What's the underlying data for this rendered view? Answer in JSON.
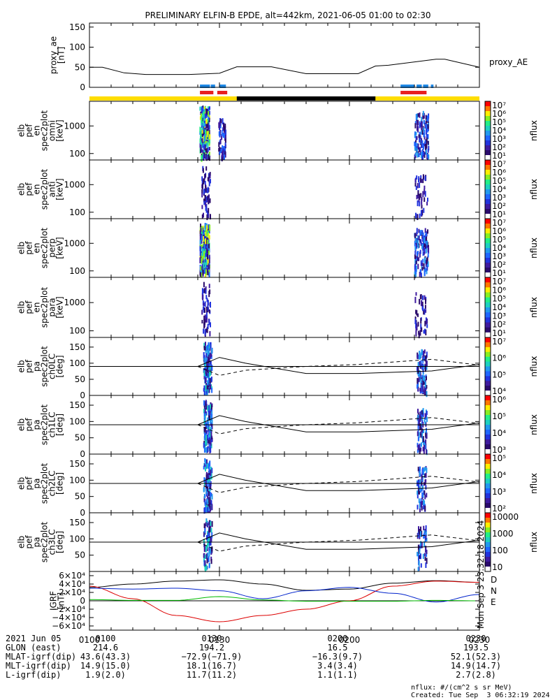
{
  "title": "PRELIMINARY ELFIN-B EPDE, alt=442km, 2021-06-05 01:00 to 02:30",
  "time_ticks": [
    "0100",
    "0130",
    "0200",
    "0230"
  ],
  "panels": {
    "proxy_ae": {
      "ylabel": [
        "proxy_ae",
        "[nT]"
      ],
      "yticks": [
        "150",
        "100",
        "50",
        "0"
      ],
      "label": "proxy_AE"
    },
    "spec_omni": {
      "ylabel": [
        "elb",
        "pef",
        "en",
        "spec2plot",
        "omni",
        "[keV]"
      ],
      "yticks": [
        "1000",
        "100"
      ]
    },
    "spec_anti": {
      "ylabel": [
        "elb",
        "pef",
        "en",
        "spec2plot",
        "anti",
        "[keV]"
      ],
      "yticks": [
        "1000",
        "100"
      ]
    },
    "spec_perp": {
      "ylabel": [
        "elb",
        "pef",
        "en",
        "spec2plot",
        "perp",
        "[keV]"
      ],
      "yticks": [
        "1000",
        "100"
      ]
    },
    "spec_para": {
      "ylabel": [
        "elb",
        "pef",
        "en",
        "spec2plot",
        "para",
        "[keV]"
      ],
      "yticks": [
        "1000",
        "100"
      ]
    },
    "pa_ch0": {
      "ylabel": [
        "elb",
        "pef",
        "pa",
        "spec2plot",
        "ch0LC",
        "[deg]"
      ],
      "yticks": [
        "150",
        "100",
        "50",
        "0"
      ]
    },
    "pa_ch1": {
      "ylabel": [
        "elb",
        "pef",
        "pa",
        "spec2plot",
        "ch1LC",
        "[deg]"
      ],
      "yticks": [
        "150",
        "100",
        "50",
        "0"
      ]
    },
    "pa_ch2": {
      "ylabel": [
        "elb",
        "pef",
        "pa",
        "spec2plot",
        "ch2LC",
        "[deg]"
      ],
      "yticks": [
        "150",
        "100",
        "50",
        "0"
      ]
    },
    "pa_ch3": {
      "ylabel": [
        "elb",
        "pef",
        "pa",
        "spec2plot",
        "ch3LC",
        "[deg]"
      ],
      "yticks": [
        "150",
        "100",
        "50"
      ]
    },
    "igrf": {
      "ylabel": [
        "IGRF",
        "[nT]"
      ],
      "yticks": [
        "6×10⁴",
        "4×10⁴",
        "2×10⁴",
        "0",
        "−2×10⁴",
        "−4×10⁴",
        "−6×10⁴"
      ],
      "legend": [
        "D",
        "N",
        "E"
      ]
    }
  },
  "colorbars": {
    "label": "nflux",
    "en_ticks": [
      "10⁷",
      "10⁶",
      "10⁵",
      "10⁴",
      "10³",
      "10²",
      "10¹"
    ],
    "ch0_ticks": [
      "10⁷",
      "10⁶",
      "10⁵",
      "10⁴"
    ],
    "ch1_ticks": [
      "10⁶",
      "10⁵",
      "10⁴",
      "10³"
    ],
    "ch2_ticks": [
      "10⁵",
      "10⁴",
      "10³",
      "10²"
    ],
    "ch3_ticks": [
      "10000",
      "1000",
      "100",
      "10"
    ]
  },
  "colors": {
    "D": "#dd0000",
    "N": "#0022cc",
    "E": "#00bb00",
    "yellow": "#ffdd00",
    "blue_bar": "#1e88e5",
    "red_bar": "#e82020"
  },
  "footer_rows": [
    [
      "2021 Jun 05",
      "0100",
      "0130",
      "0200",
      "0230"
    ],
    [
      "GLON (east)",
      "214.6",
      "194.2",
      "16.5",
      "193.5"
    ],
    [
      "MLAT-igrf(dip)",
      "43.6(43.3)",
      "−72.9(−71.9)",
      "−16.3(9.7)",
      "52.1(52.3)"
    ],
    [
      "MLT-igrf(dip)",
      "14.9(15.0)",
      "18.1(16.7)",
      "3.4(3.4)",
      "14.9(14.7)"
    ],
    [
      "L-igrf(dip)",
      "1.9(2.0)",
      "11.7(11.2)",
      "1.1(1.1)",
      "2.7(2.8)"
    ]
  ],
  "units_note": "nflux: #/(cm^2 s sr MeV)",
  "created": "Created: Tue Sep  3 06:32:19 2024",
  "side_stamp": "Mon Sep  3 23:32:18 2024",
  "chart_data": [
    {
      "type": "line",
      "title": "proxy_ae",
      "x_range": [
        "01:00",
        "02:30"
      ],
      "ylim": [
        0,
        160
      ],
      "x_min": [
        0,
        3,
        8,
        13,
        23,
        30,
        34,
        42,
        50,
        62,
        66,
        69,
        80,
        82,
        88,
        90
      ],
      "values": [
        50,
        50,
        36,
        32,
        32,
        35,
        51,
        51,
        34,
        34,
        53,
        55,
        70,
        70,
        55,
        50
      ]
    },
    {
      "type": "line",
      "title": "IGRF",
      "ylim": [
        -60000,
        60000
      ],
      "series_names": [
        "D",
        "N",
        "E"
      ],
      "x_min": [
        0,
        10,
        20,
        30,
        40,
        50,
        60,
        70,
        80,
        90
      ],
      "D": [
        35000,
        5000,
        -35000,
        -50000,
        -35000,
        -20000,
        0,
        35000,
        47000,
        44000
      ],
      "N": [
        30000,
        28000,
        30000,
        24000,
        5000,
        24000,
        32000,
        18000,
        -3000,
        15000
      ],
      "E": [
        3000,
        1000,
        1000,
        10000,
        2000,
        -1000,
        -1000,
        -1000,
        1000,
        0
      ]
    }
  ]
}
